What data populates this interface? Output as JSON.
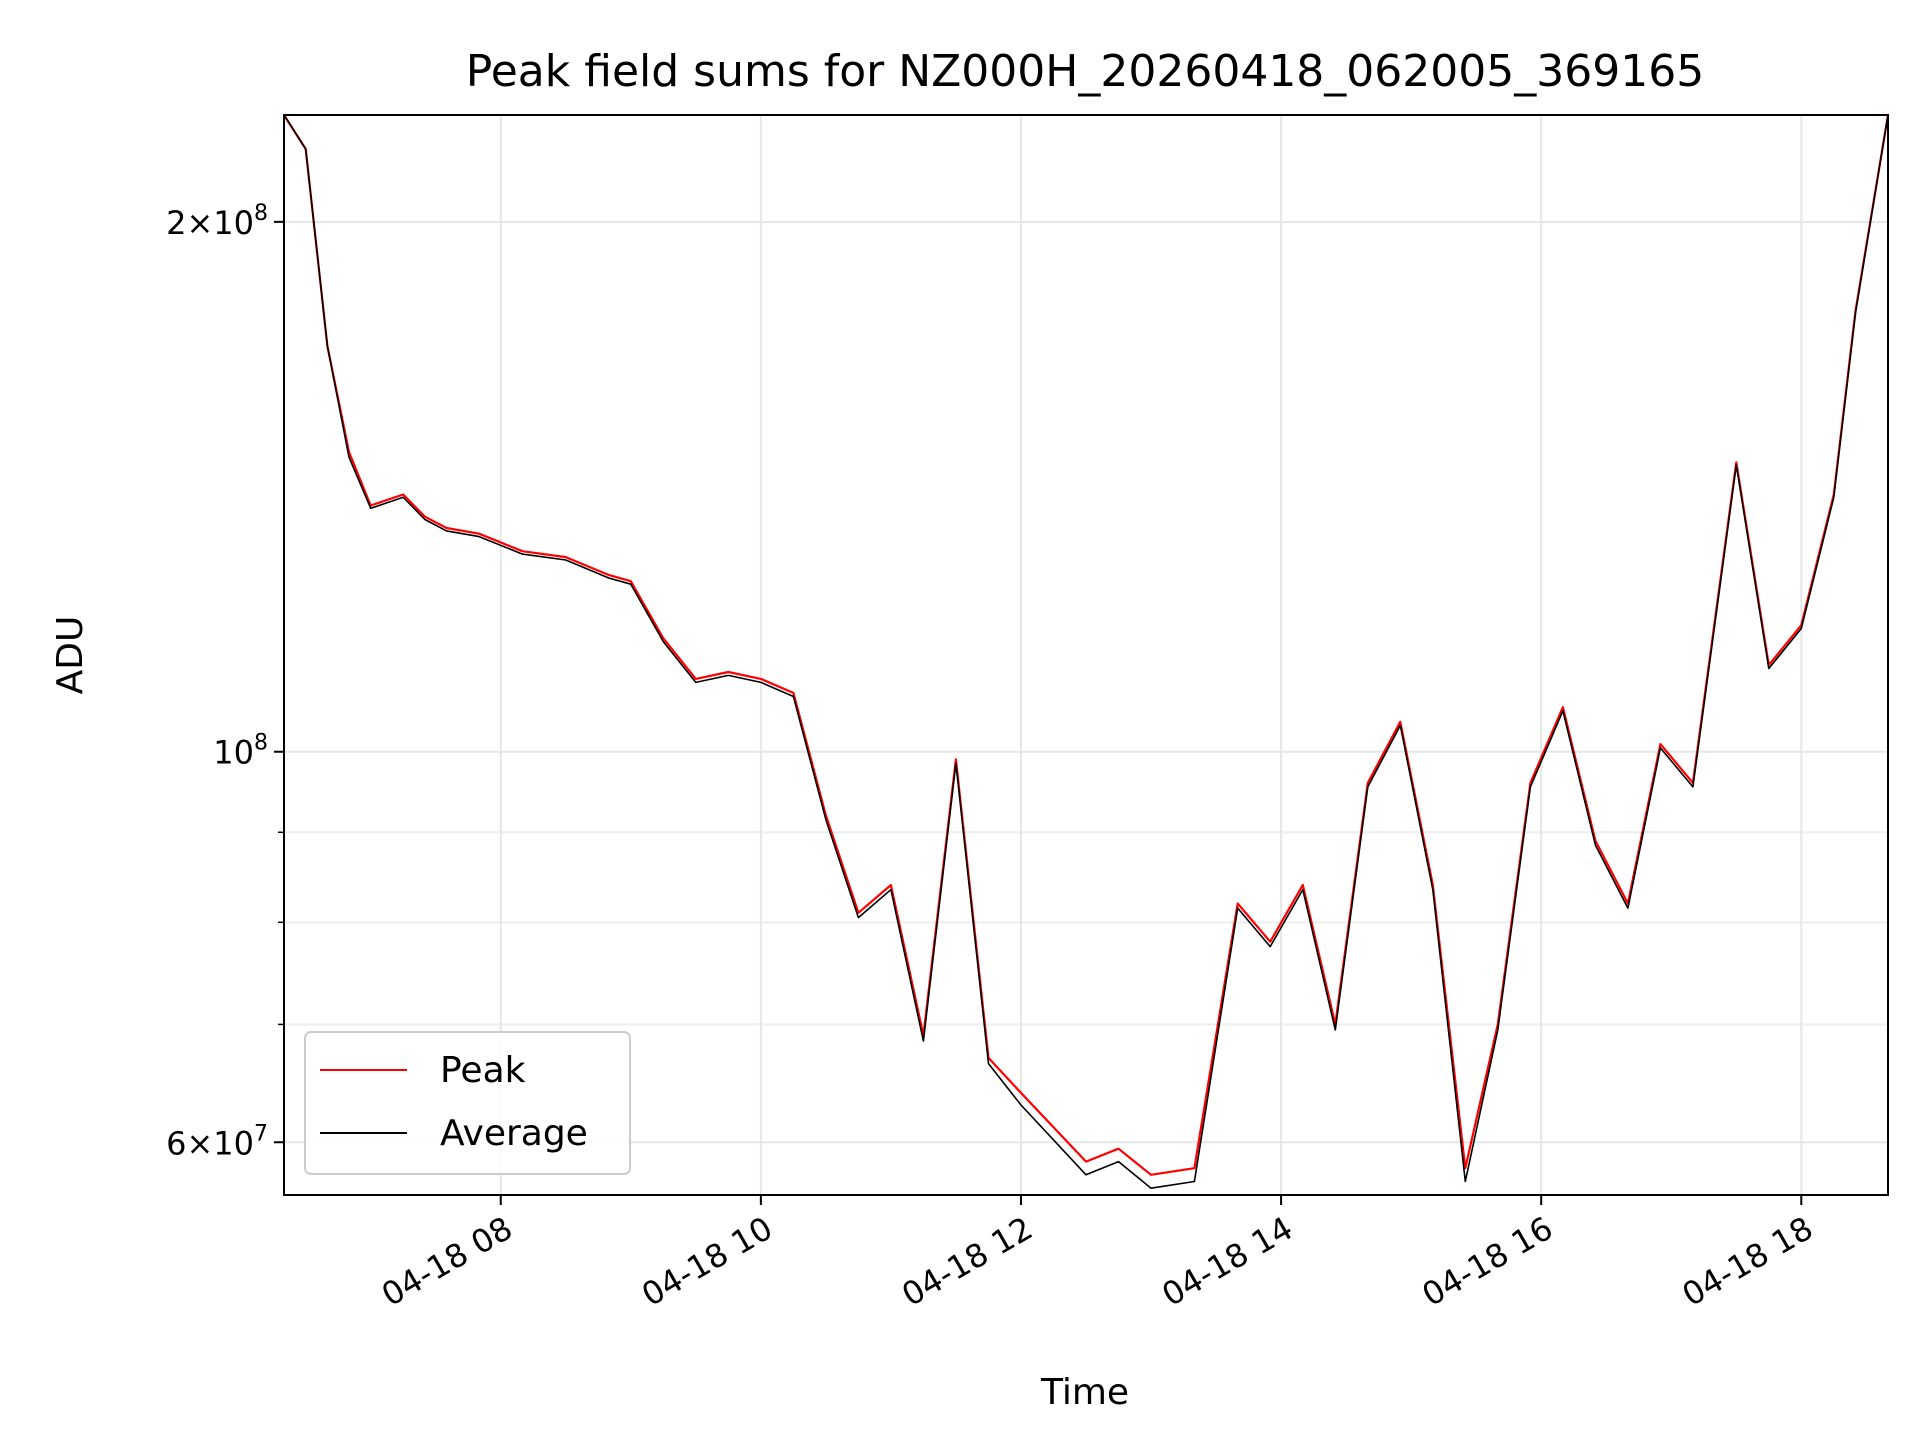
{
  "chart_data": {
    "type": "line",
    "title": "Peak field sums for NZ000H_20260418_062005_369165",
    "xlabel": "Time",
    "ylabel": "ADU",
    "yscale": "log",
    "grid": true,
    "legend_position": "lower-left",
    "xlim": [
      "2026-04-18T06:20",
      "2026-04-18T18:40"
    ],
    "ylim": [
      56000000,
      230000000
    ],
    "x_ticks": [
      {
        "label": "04-18 08",
        "value": "2026-04-18T08:00"
      },
      {
        "label": "04-18 10",
        "value": "2026-04-18T10:00"
      },
      {
        "label": "04-18 12",
        "value": "2026-04-18T12:00"
      },
      {
        "label": "04-18 14",
        "value": "2026-04-18T14:00"
      },
      {
        "label": "04-18 16",
        "value": "2026-04-18T16:00"
      },
      {
        "label": "04-18 18",
        "value": "2026-04-18T18:00"
      }
    ],
    "y_ticks": [
      {
        "value": 200000000,
        "mantissa": "2",
        "times": "×",
        "base": "10",
        "exp": "8"
      },
      {
        "value": 100000000,
        "mantissa": "",
        "times": "",
        "base": "10",
        "exp": "8"
      },
      {
        "value": 60000000,
        "mantissa": "6",
        "times": "×",
        "base": "10",
        "exp": "7"
      }
    ],
    "y_minor_ticks": [
      70000000,
      80000000,
      90000000
    ],
    "series": [
      {
        "name": "Peak",
        "color": "#ff0000",
        "x": [
          "2026-04-18T06:20",
          "2026-04-18T06:30",
          "2026-04-18T06:40",
          "2026-04-18T06:50",
          "2026-04-18T07:00",
          "2026-04-18T07:15",
          "2026-04-18T07:25",
          "2026-04-18T07:35",
          "2026-04-18T07:50",
          "2026-04-18T08:10",
          "2026-04-18T08:30",
          "2026-04-18T08:50",
          "2026-04-18T09:00",
          "2026-04-18T09:15",
          "2026-04-18T09:30",
          "2026-04-18T09:45",
          "2026-04-18T10:00",
          "2026-04-18T10:15",
          "2026-04-18T10:30",
          "2026-04-18T10:45",
          "2026-04-18T11:00",
          "2026-04-18T11:15",
          "2026-04-18T11:30",
          "2026-04-18T11:45",
          "2026-04-18T12:00",
          "2026-04-18T12:30",
          "2026-04-18T12:45",
          "2026-04-18T13:00",
          "2026-04-18T13:20",
          "2026-04-18T13:40",
          "2026-04-18T13:55",
          "2026-04-18T14:10",
          "2026-04-18T14:25",
          "2026-04-18T14:40",
          "2026-04-18T14:55",
          "2026-04-18T15:10",
          "2026-04-18T15:25",
          "2026-04-18T15:40",
          "2026-04-18T15:55",
          "2026-04-18T16:10",
          "2026-04-18T16:25",
          "2026-04-18T16:40",
          "2026-04-18T16:55",
          "2026-04-18T17:10",
          "2026-04-18T17:30",
          "2026-04-18T17:45",
          "2026-04-18T18:00",
          "2026-04-18T18:15",
          "2026-04-18T18:25",
          "2026-04-18T18:40"
        ],
        "y": [
          230000000,
          220000000,
          170000000,
          148000000,
          138000000,
          140000000,
          136000000,
          134000000,
          133000000,
          130000000,
          129000000,
          126000000,
          125000000,
          116000000,
          110000000,
          111000000,
          110000000,
          108000000,
          92000000,
          81000000,
          84000000,
          69000000,
          99000000,
          67000000,
          64000000,
          58500000,
          59500000,
          57500000,
          58000000,
          82000000,
          78000000,
          84000000,
          70000000,
          96000000,
          104000000,
          84000000,
          58000000,
          70000000,
          96000000,
          106000000,
          89000000,
          82000000,
          101000000,
          96000000,
          146000000,
          112000000,
          118000000,
          140000000,
          178000000,
          230000000
        ]
      },
      {
        "name": "Average",
        "color": "#000000",
        "x": [
          "2026-04-18T06:20",
          "2026-04-18T06:30",
          "2026-04-18T06:40",
          "2026-04-18T06:50",
          "2026-04-18T07:00",
          "2026-04-18T07:15",
          "2026-04-18T07:25",
          "2026-04-18T07:35",
          "2026-04-18T07:50",
          "2026-04-18T08:10",
          "2026-04-18T08:30",
          "2026-04-18T08:50",
          "2026-04-18T09:00",
          "2026-04-18T09:15",
          "2026-04-18T09:30",
          "2026-04-18T09:45",
          "2026-04-18T10:00",
          "2026-04-18T10:15",
          "2026-04-18T10:30",
          "2026-04-18T10:45",
          "2026-04-18T11:00",
          "2026-04-18T11:15",
          "2026-04-18T11:30",
          "2026-04-18T11:45",
          "2026-04-18T12:00",
          "2026-04-18T12:30",
          "2026-04-18T12:45",
          "2026-04-18T13:00",
          "2026-04-18T13:20",
          "2026-04-18T13:40",
          "2026-04-18T13:55",
          "2026-04-18T14:10",
          "2026-04-18T14:25",
          "2026-04-18T14:40",
          "2026-04-18T14:55",
          "2026-04-18T15:10",
          "2026-04-18T15:25",
          "2026-04-18T15:40",
          "2026-04-18T15:55",
          "2026-04-18T16:10",
          "2026-04-18T16:25",
          "2026-04-18T16:40",
          "2026-04-18T16:55",
          "2026-04-18T17:10",
          "2026-04-18T17:30",
          "2026-04-18T17:45",
          "2026-04-18T18:00",
          "2026-04-18T18:15",
          "2026-04-18T18:25",
          "2026-04-18T18:40"
        ],
        "y": [
          230000000,
          220000000,
          170000000,
          147000000,
          137500000,
          139500000,
          135500000,
          133500000,
          132500000,
          129500000,
          128500000,
          125500000,
          124500000,
          115500000,
          109500000,
          110500000,
          109500000,
          107500000,
          91500000,
          80500000,
          83500000,
          68500000,
          98500000,
          66500000,
          63000000,
          57500000,
          58500000,
          56500000,
          57000000,
          81500000,
          77500000,
          83500000,
          69500000,
          95500000,
          103500000,
          83500000,
          57000000,
          69500000,
          95500000,
          105500000,
          88500000,
          81500000,
          100500000,
          95500000,
          145500000,
          111500000,
          117500000,
          139500000,
          177500000,
          230000000
        ]
      }
    ]
  }
}
